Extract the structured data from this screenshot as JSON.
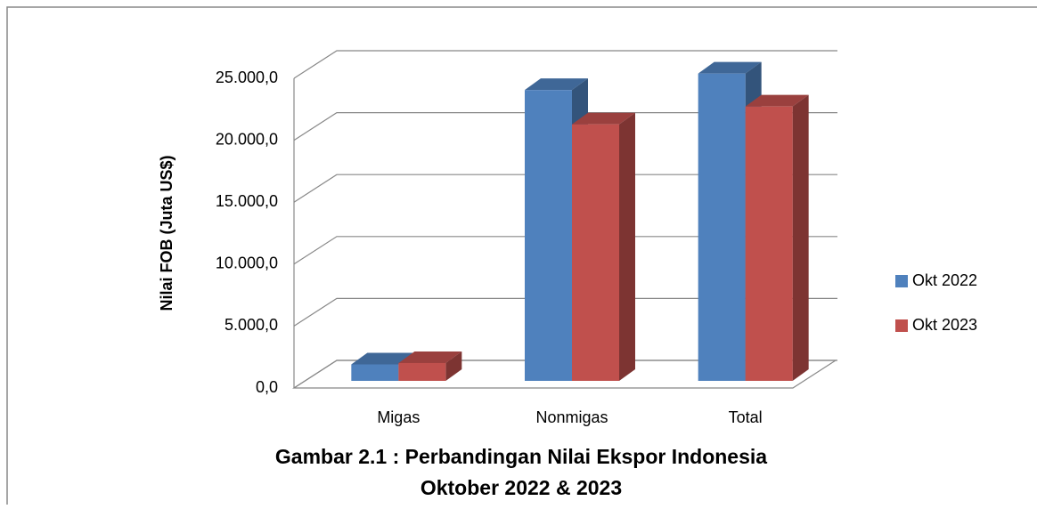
{
  "chart_data": {
    "type": "bar3d",
    "title": "Gambar 2.1 : Perbandingan Nilai Ekspor Indonesia",
    "subtitle": "Oktober 2022 & 2023",
    "y_label": "Nilai FOB (Juta US$)",
    "categories": [
      "Migas",
      "Nonmigas",
      "Total"
    ],
    "series": [
      {
        "name": "Okt 2022",
        "color": "#4f81bd",
        "values": [
          1330,
          23480,
          24810
        ]
      },
      {
        "name": "Okt 2023",
        "color": "#c0504d",
        "values": [
          1440,
          20710,
          22150
        ]
      }
    ],
    "ylim": [
      0,
      25000
    ],
    "yticks": [
      {
        "value": 0,
        "label": "0,0"
      },
      {
        "value": 5000,
        "label": "5.000,0"
      },
      {
        "value": 10000,
        "label": "10.000,0"
      },
      {
        "value": 15000,
        "label": "15.000,0"
      },
      {
        "value": 20000,
        "label": "20.000,0"
      },
      {
        "value": 25000,
        "label": "25.000,0"
      }
    ],
    "grid": true,
    "legend": "right"
  }
}
